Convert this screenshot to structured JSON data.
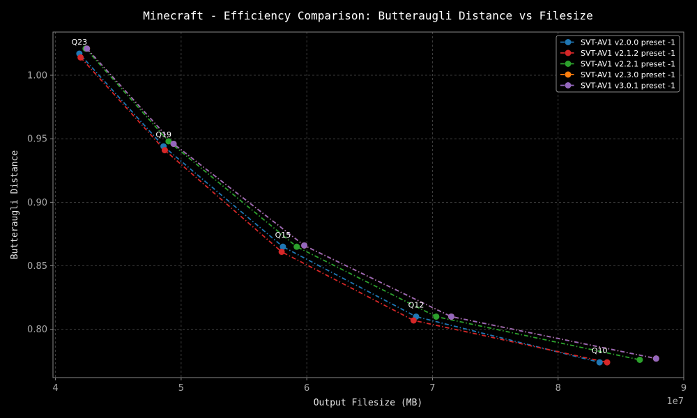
{
  "chart_data": {
    "type": "line",
    "title": "Minecraft - Efficiency Comparison: Butteraugli Distance vs Filesize",
    "xlabel": "Output Filesize (MB)",
    "ylabel": "Butteraugli Distance",
    "x_offset_label": "1e7",
    "xlim": [
      3.98,
      9.0
    ],
    "ylim": [
      0.762,
      1.034
    ],
    "x_ticks": [
      4,
      5,
      6,
      7,
      8,
      9
    ],
    "x_tick_labels": [
      "4",
      "5",
      "6",
      "7",
      "8",
      "9"
    ],
    "y_ticks": [
      0.8,
      0.85,
      0.9,
      0.95,
      1.0
    ],
    "y_tick_labels": [
      "0.80",
      "0.85",
      "0.90",
      "0.95",
      "1.00"
    ],
    "grid": true,
    "legend_position": "top-right",
    "series": [
      {
        "name": "SVT-AV1 v2.0.0 preset -1",
        "color": "#1f77b4",
        "dash": "6 3 1.5 3",
        "x": [
          4.19,
          4.86,
          5.81,
          6.87,
          8.33
        ],
        "y": [
          1.017,
          0.944,
          0.865,
          0.81,
          0.774
        ]
      },
      {
        "name": "SVT-AV1 v2.1.2 preset -1",
        "color": "#d62728",
        "dash": "6 3 1.5 3",
        "x": [
          4.2,
          4.87,
          5.8,
          6.85,
          8.39
        ],
        "y": [
          1.014,
          0.941,
          0.861,
          0.807,
          0.774
        ]
      },
      {
        "name": "SVT-AV1 v2.2.1 preset -1",
        "color": "#2ca02c",
        "dash": "6 3 1.5 3",
        "x": [
          4.24,
          4.9,
          5.92,
          7.03,
          8.65
        ],
        "y": [
          1.021,
          0.948,
          0.865,
          0.81,
          0.776
        ]
      },
      {
        "name": "SVT-AV1 v2.3.0 preset -1",
        "color": "#ff7f0e",
        "dash": "6 3 1.5 3",
        "x": [
          4.25,
          4.94,
          5.98,
          7.15,
          8.78
        ],
        "y": [
          1.021,
          0.946,
          0.866,
          0.81,
          0.777
        ]
      },
      {
        "name": "SVT-AV1 v3.0.1 preset -1",
        "color": "#9467bd",
        "dash": "6 3 1.5 3",
        "x": [
          4.25,
          4.94,
          5.98,
          7.15,
          8.78
        ],
        "y": [
          1.021,
          0.946,
          0.866,
          0.81,
          0.777
        ]
      }
    ],
    "annotations": [
      {
        "text": "Q23",
        "x": 4.19,
        "y": 1.017
      },
      {
        "text": "Q19",
        "x": 4.86,
        "y": 0.944
      },
      {
        "text": "Q15",
        "x": 5.81,
        "y": 0.865
      },
      {
        "text": "Q12",
        "x": 6.87,
        "y": 0.81
      },
      {
        "text": "Q10",
        "x": 8.33,
        "y": 0.774
      }
    ]
  }
}
